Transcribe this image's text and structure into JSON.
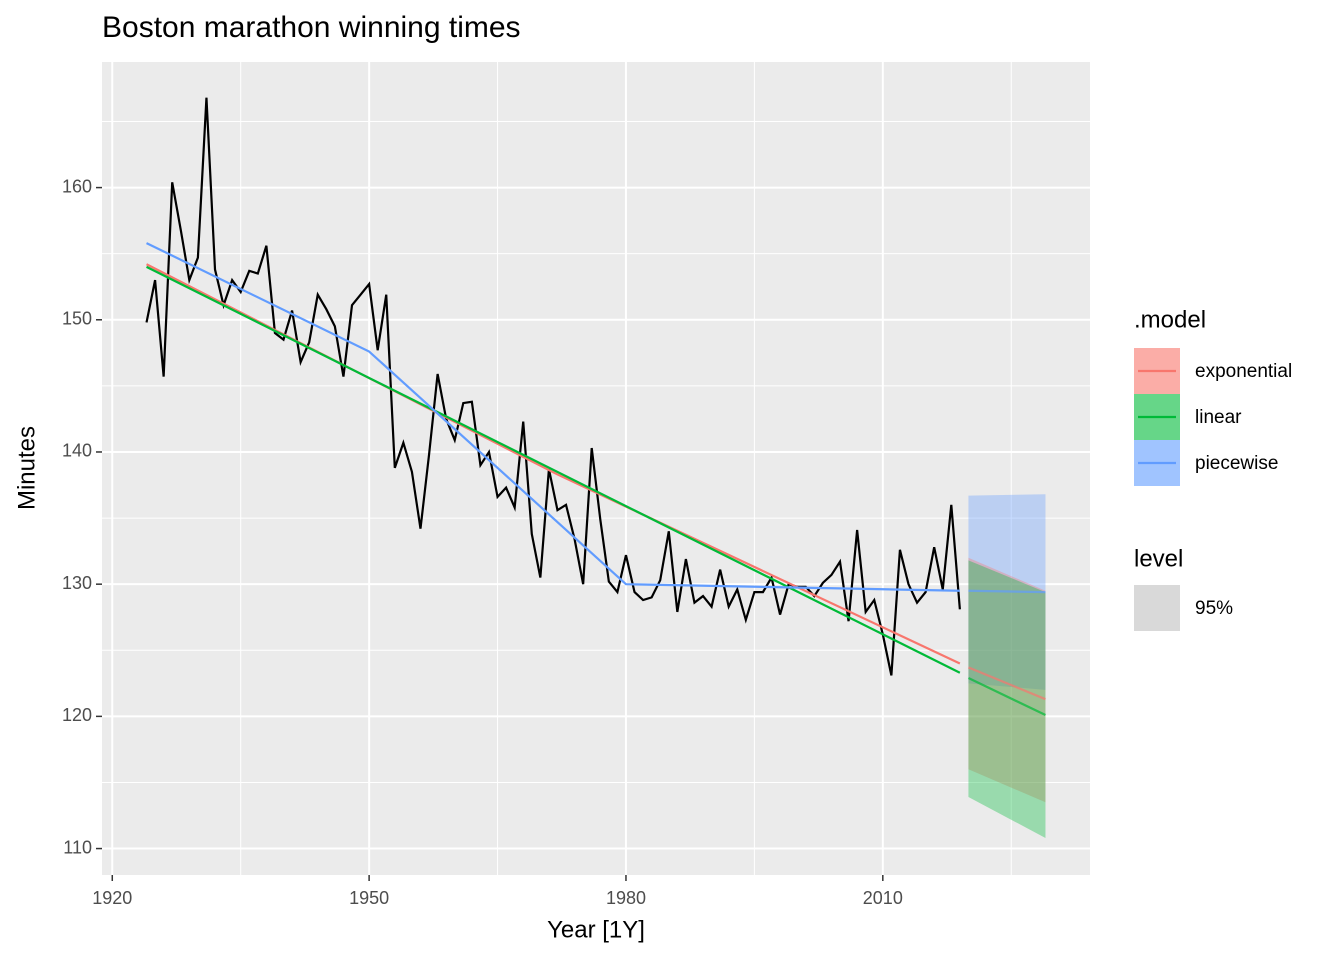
{
  "chart_data": {
    "type": "line",
    "title": "Boston marathon winning times",
    "x_label": "Year [1Y]",
    "y_label": "Minutes",
    "xlim": [
      1918.8,
      2034.2
    ],
    "ylim": [
      108,
      169.5
    ],
    "xticks": [
      1920,
      1950,
      1980,
      2010
    ],
    "yticks": [
      110,
      120,
      130,
      140,
      150,
      160
    ],
    "minor_xticks": [
      1935,
      1965,
      1995,
      2025
    ],
    "minor_yticks": [
      115,
      125,
      135,
      145,
      155,
      165
    ],
    "grid": true,
    "color": "#000000",
    "x": [
      1924,
      1925,
      1926,
      1927,
      1928,
      1929,
      1930,
      1931,
      1932,
      1933,
      1934,
      1935,
      1936,
      1937,
      1938,
      1939,
      1940,
      1941,
      1942,
      1943,
      1944,
      1945,
      1946,
      1947,
      1948,
      1949,
      1950,
      1951,
      1952,
      1953,
      1954,
      1955,
      1956,
      1957,
      1958,
      1959,
      1960,
      1961,
      1962,
      1963,
      1964,
      1965,
      1966,
      1967,
      1968,
      1969,
      1970,
      1971,
      1972,
      1973,
      1974,
      1975,
      1976,
      1977,
      1978,
      1979,
      1980,
      1981,
      1982,
      1983,
      1984,
      1985,
      1986,
      1987,
      1988,
      1989,
      1990,
      1991,
      1992,
      1993,
      1994,
      1995,
      1996,
      1997,
      1998,
      1999,
      2000,
      2001,
      2002,
      2003,
      2004,
      2005,
      2006,
      2007,
      2008,
      2009,
      2010,
      2011,
      2012,
      2013,
      2014,
      2015,
      2016,
      2017,
      2018,
      2019
    ],
    "values": [
      149.8,
      153.0,
      145.7,
      160.4,
      156.8,
      153.0,
      154.7,
      166.8,
      153.8,
      151.1,
      153.0,
      152.1,
      153.7,
      153.5,
      155.6,
      149.0,
      148.5,
      150.7,
      146.8,
      148.3,
      151.9,
      150.8,
      149.5,
      145.7,
      151.1,
      151.9,
      152.7,
      147.7,
      151.9,
      138.8,
      140.7,
      138.5,
      134.2,
      139.8,
      145.9,
      142.5,
      140.9,
      143.7,
      143.8,
      139.0,
      140.0,
      136.6,
      137.3,
      135.8,
      142.3,
      133.8,
      130.5,
      138.7,
      135.6,
      136.0,
      133.4,
      130.0,
      140.3,
      134.9,
      130.2,
      129.4,
      132.2,
      129.4,
      128.8,
      129.0,
      130.3,
      134.0,
      127.9,
      131.9,
      128.6,
      129.1,
      128.3,
      131.1,
      128.3,
      129.6,
      127.3,
      129.4,
      129.4,
      130.5,
      127.7,
      130.0,
      129.8,
      129.8,
      129.1,
      130.1,
      130.7,
      131.7,
      127.2,
      134.1,
      127.9,
      128.8,
      126.2,
      123.1,
      132.6,
      130.0,
      128.6,
      129.4,
      132.8,
      129.6,
      136.0,
      128.1
    ],
    "legend_title": ".model",
    "series": [
      {
        "name": "exponential",
        "color": "#F8766D",
        "fit": {
          "x": [
            1924,
            1972,
            2019
          ],
          "values": [
            154.2,
            138.3,
            124.0
          ]
        },
        "forecast": {
          "x": [
            2020,
            2029
          ],
          "values": [
            123.7,
            121.3
          ],
          "lower": [
            116.0,
            113.5
          ],
          "upper": [
            132.0,
            129.5
          ]
        }
      },
      {
        "name": "linear",
        "color": "#00BA38",
        "fit": {
          "x": [
            1924,
            2019
          ],
          "values": [
            154.0,
            123.3
          ]
        },
        "forecast": {
          "x": [
            2020,
            2029
          ],
          "values": [
            122.9,
            120.1
          ],
          "lower": [
            113.9,
            110.8
          ],
          "upper": [
            131.8,
            129.4
          ]
        }
      },
      {
        "name": "piecewise",
        "color": "#619CFF",
        "fit": {
          "x": [
            1924,
            1950,
            1980,
            2019
          ],
          "values": [
            155.8,
            147.6,
            130.0,
            129.5
          ]
        },
        "forecast": {
          "x": [
            2020,
            2029
          ],
          "values": [
            129.5,
            129.4
          ],
          "lower": [
            122.5,
            122.0
          ],
          "upper": [
            136.7,
            136.8
          ]
        }
      }
    ],
    "level_legend": {
      "title": "level",
      "labels": [
        "95%"
      ]
    }
  }
}
